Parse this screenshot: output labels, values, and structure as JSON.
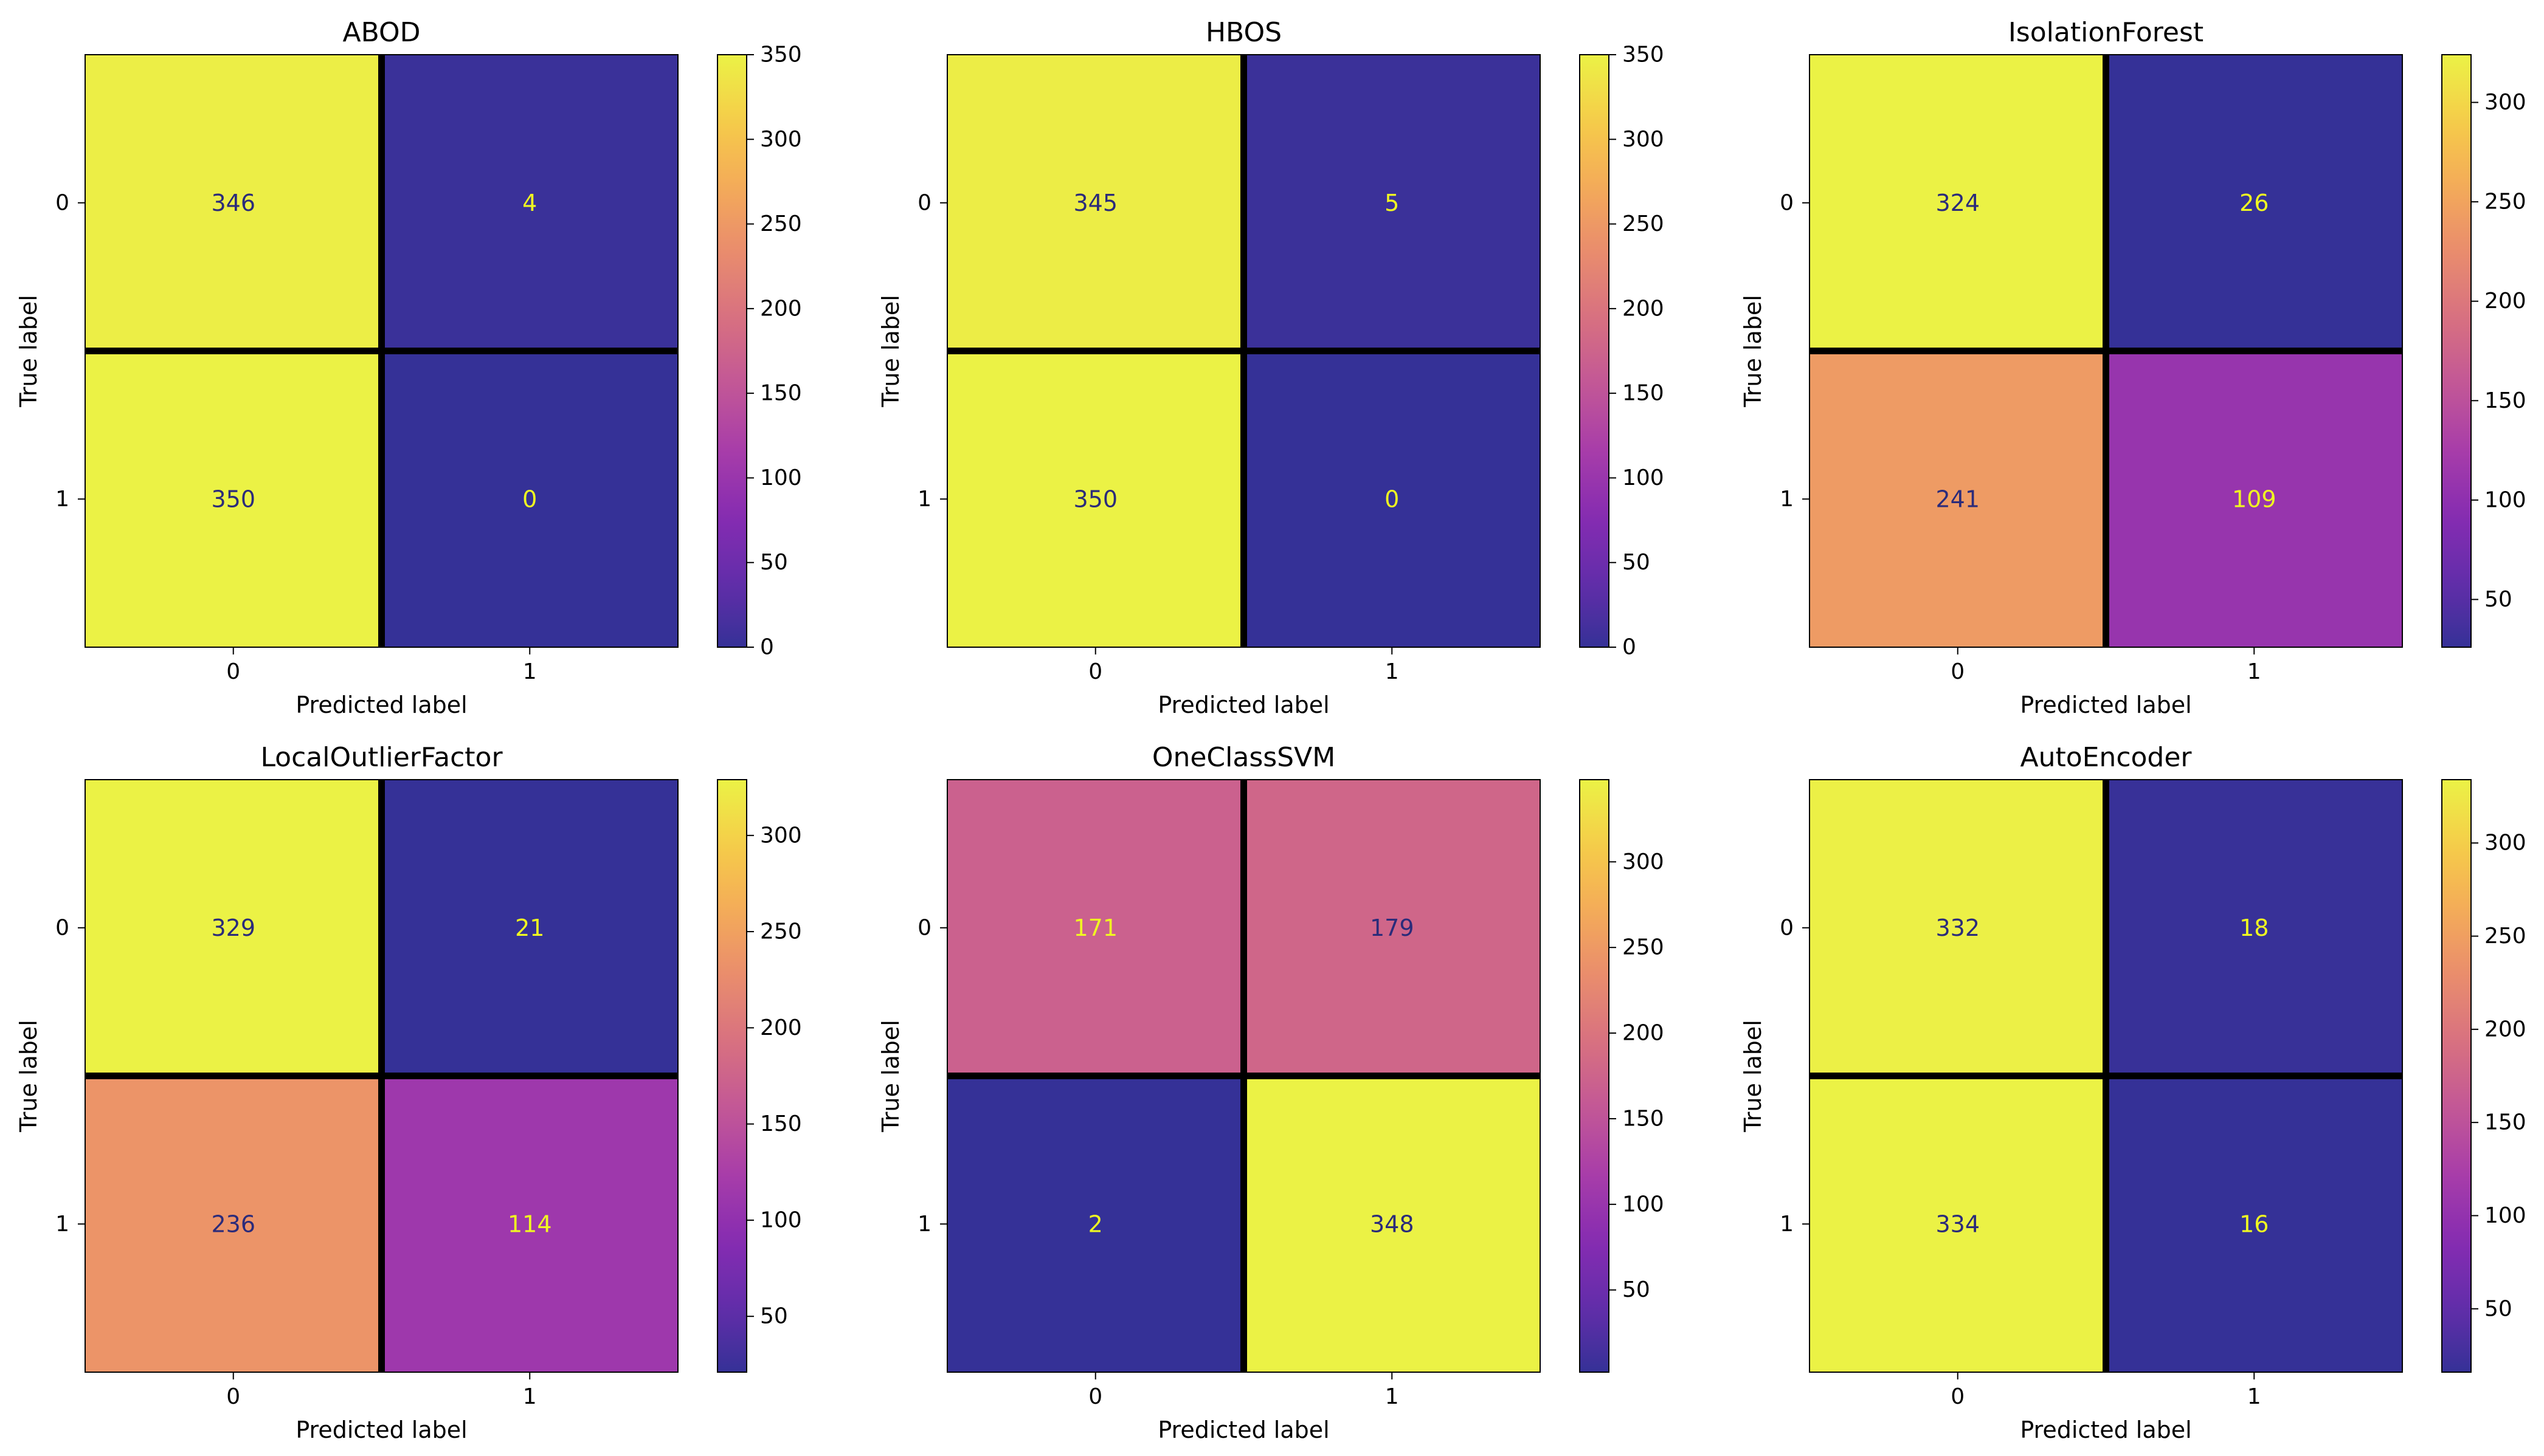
{
  "chart_data": [
    {
      "type": "heatmap",
      "title": "ABOD",
      "xlabel": "Predicted label",
      "ylabel": "True label",
      "x_categories": [
        "0",
        "1"
      ],
      "y_categories": [
        "0",
        "1"
      ],
      "matrix": [
        [
          346,
          4
        ],
        [
          350,
          0
        ]
      ],
      "colormap": "plasma",
      "colorbar_range": [
        0,
        350
      ],
      "colorbar_ticks": [
        0,
        50,
        100,
        150,
        200,
        250,
        300,
        350
      ]
    },
    {
      "type": "heatmap",
      "title": "HBOS",
      "xlabel": "Predicted label",
      "ylabel": "True label",
      "x_categories": [
        "0",
        "1"
      ],
      "y_categories": [
        "0",
        "1"
      ],
      "matrix": [
        [
          345,
          5
        ],
        [
          350,
          0
        ]
      ],
      "colormap": "plasma",
      "colorbar_range": [
        0,
        350
      ],
      "colorbar_ticks": [
        0,
        50,
        100,
        150,
        200,
        250,
        300,
        350
      ]
    },
    {
      "type": "heatmap",
      "title": "IsolationForest",
      "xlabel": "Predicted label",
      "ylabel": "True label",
      "x_categories": [
        "0",
        "1"
      ],
      "y_categories": [
        "0",
        "1"
      ],
      "matrix": [
        [
          324,
          26
        ],
        [
          241,
          109
        ]
      ],
      "colormap": "plasma",
      "colorbar_range": [
        26,
        324
      ],
      "colorbar_ticks": [
        50,
        100,
        150,
        200,
        250,
        300
      ]
    },
    {
      "type": "heatmap",
      "title": "LocalOutlierFactor",
      "xlabel": "Predicted label",
      "ylabel": "True label",
      "x_categories": [
        "0",
        "1"
      ],
      "y_categories": [
        "0",
        "1"
      ],
      "matrix": [
        [
          329,
          21
        ],
        [
          236,
          114
        ]
      ],
      "colormap": "plasma",
      "colorbar_range": [
        21,
        329
      ],
      "colorbar_ticks": [
        50,
        100,
        150,
        200,
        250,
        300
      ]
    },
    {
      "type": "heatmap",
      "title": "OneClassSVM",
      "xlabel": "Predicted label",
      "ylabel": "True label",
      "x_categories": [
        "0",
        "1"
      ],
      "y_categories": [
        "0",
        "1"
      ],
      "matrix": [
        [
          171,
          179
        ],
        [
          2,
          348
        ]
      ],
      "colormap": "plasma",
      "colorbar_range": [
        2,
        348
      ],
      "colorbar_ticks": [
        50,
        100,
        150,
        200,
        250,
        300
      ]
    },
    {
      "type": "heatmap",
      "title": "AutoEncoder",
      "xlabel": "Predicted label",
      "ylabel": "True label",
      "x_categories": [
        "0",
        "1"
      ],
      "y_categories": [
        "0",
        "1"
      ],
      "matrix": [
        [
          332,
          18
        ],
        [
          334,
          16
        ]
      ],
      "colormap": "plasma",
      "colorbar_range": [
        16,
        334
      ],
      "colorbar_ticks": [
        50,
        100,
        150,
        200,
        250,
        300
      ]
    }
  ],
  "colors": {
    "plasma_stops": [
      "#0d0887",
      "#46039f",
      "#7201a8",
      "#9c179e",
      "#bd3786",
      "#d8576b",
      "#ed7953",
      "#fb9f3a",
      "#fdca26",
      "#f0f921"
    ],
    "cell_overlay": "#d7d7d7",
    "overlay_opacity": 0.2,
    "dark_text": "#2b2b7a",
    "light_text": "#f0f921",
    "divider": "#000000"
  }
}
